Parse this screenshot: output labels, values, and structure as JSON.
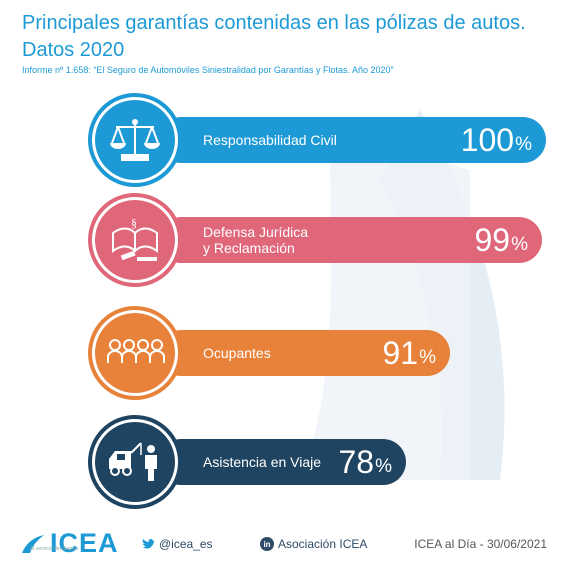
{
  "title_line1": "Principales garantías contenidas en las pólizas de autos.",
  "title_line2": "Datos 2020",
  "subtitle": "Informe nº 1.658: “El Seguro de Automóviles Siniestralidad por Garantías y Flotas. Año 2020”",
  "chart_data": {
    "type": "bar",
    "orientation": "horizontal",
    "categories": [
      "Responsabilidad Civil",
      "Defensa Jurídica y Reclamación",
      "Ocupantes",
      "Asistencia en Viaje"
    ],
    "values": [
      100,
      99,
      91,
      78
    ],
    "unit": "%",
    "colors": [
      "#1d9ad6",
      "#e0677a",
      "#e8823a",
      "#1f4461"
    ],
    "icons": [
      "scales-icon",
      "law-book-icon",
      "people-icon",
      "tow-truck-icon"
    ]
  },
  "bars": [
    {
      "label_1": "Responsabilidad Civil",
      "label_2": "",
      "value": "100",
      "unit": "%"
    },
    {
      "label_1": "Defensa Jurídica",
      "label_2": "y Reclamación",
      "value": "99",
      "unit": "%"
    },
    {
      "label_1": "Ocupantes",
      "label_2": "",
      "value": "91",
      "unit": "%"
    },
    {
      "label_1": "Asistencia en Viaje",
      "label_2": "",
      "value": "78",
      "unit": "%"
    }
  ],
  "footer": {
    "logo": "ICEA",
    "logo_tagline": "Al servicio del Seguro",
    "twitter": "@icea_es",
    "linkedin": "Asociación ICEA",
    "date": "ICEA al Día - 30/06/2021"
  }
}
